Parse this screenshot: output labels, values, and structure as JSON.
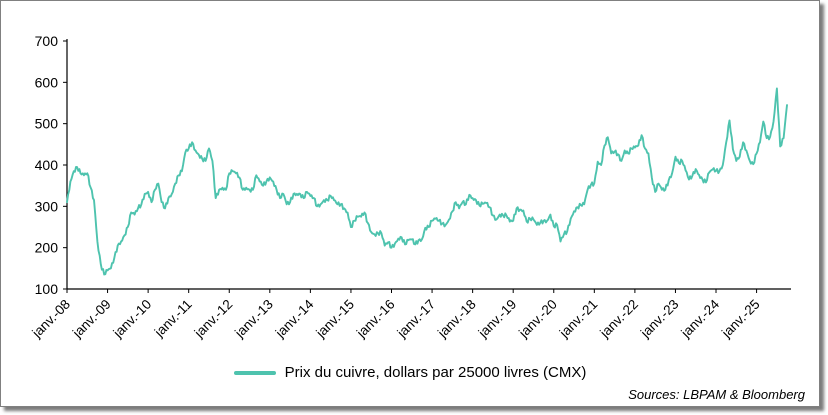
{
  "chart_data": {
    "type": "line",
    "title": "",
    "xlabel": "",
    "ylabel": "",
    "ylim": [
      100,
      700
    ],
    "yticks": [
      100,
      200,
      300,
      400,
      500,
      600,
      700
    ],
    "grid": false,
    "legend_position": "bottom",
    "x_tick_every_n_points": 12,
    "x_tick_labels": [
      "janv.-08",
      "janv.-09",
      "janv.-10",
      "janv.-11",
      "janv.-12",
      "janv.-13",
      "janv.-14",
      "janv.-15",
      "janv.-16",
      "janv.-17",
      "janv.-18",
      "janv.-19",
      "janv.-20",
      "janv.-21",
      "janv.-22",
      "janv.-23",
      "janv.-24",
      "janv.-25"
    ],
    "series": [
      {
        "name": "Prix du cuivre, dollars par 25000 livres (CMX)",
        "color": "#4EC3AE",
        "values": [
          310,
          360,
          385,
          395,
          380,
          375,
          380,
          345,
          315,
          215,
          160,
          135,
          145,
          150,
          175,
          205,
          215,
          230,
          250,
          285,
          280,
          295,
          305,
          330,
          335,
          310,
          340,
          355,
          310,
          295,
          320,
          330,
          355,
          375,
          385,
          430,
          440,
          455,
          435,
          425,
          415,
          410,
          440,
          410,
          320,
          340,
          345,
          340,
          380,
          385,
          380,
          370,
          340,
          345,
          340,
          340,
          375,
          360,
          350,
          360,
          370,
          360,
          340,
          320,
          330,
          305,
          310,
          330,
          330,
          330,
          320,
          335,
          325,
          320,
          300,
          305,
          315,
          315,
          325,
          315,
          305,
          305,
          295,
          285,
          250,
          265,
          275,
          275,
          285,
          260,
          238,
          232,
          235,
          235,
          205,
          213,
          200,
          210,
          222,
          225,
          208,
          218,
          220,
          208,
          218,
          220,
          248,
          250,
          265,
          270,
          265,
          258,
          255,
          268,
          288,
          310,
          295,
          310,
          305,
          328,
          320,
          315,
          302,
          306,
          308,
          298,
          278,
          268,
          280,
          278,
          278,
          263,
          265,
          295,
          292,
          290,
          263,
          270,
          268,
          255,
          260,
          265,
          265,
          280,
          252,
          255,
          215,
          232,
          240,
          270,
          288,
          298,
          303,
          305,
          340,
          352,
          356,
          408,
          400,
          447,
          467,
          428,
          432,
          426,
          410,
          435,
          428,
          440,
          442,
          447,
          472,
          440,
          428,
          370,
          335,
          355,
          340,
          340,
          363,
          380,
          420,
          405,
          410,
          387,
          365,
          374,
          390,
          376,
          365,
          358,
          382,
          389,
          386,
          385,
          400,
          455,
          508,
          438,
          410,
          420,
          455,
          435,
          410,
          402,
          428,
          455,
          505,
          465,
          468,
          505,
          585,
          445,
          465,
          545
        ]
      }
    ]
  },
  "sources": "Sources: LBPAM & Bloomberg",
  "colors": {
    "line": "#4EC3AE",
    "axis": "#000000",
    "background": "#FFFFFF"
  }
}
